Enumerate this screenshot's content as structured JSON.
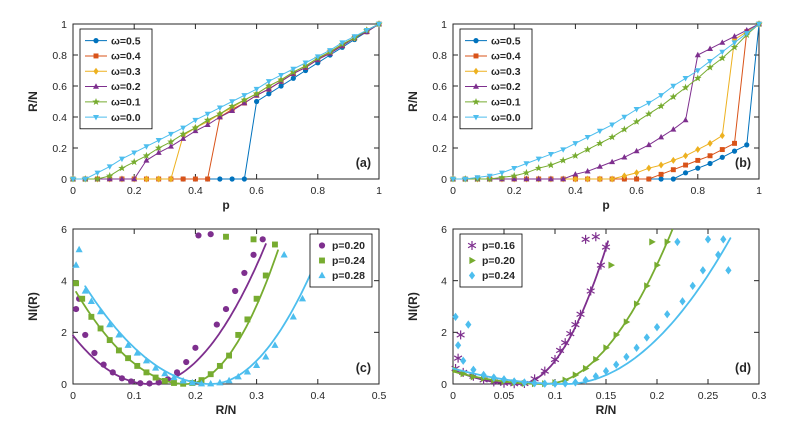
{
  "figure": {
    "background": "#ffffff",
    "axes_color": "#262626",
    "panel_labels": [
      "(a)",
      "(b)",
      "(c)",
      "(d)"
    ]
  },
  "palette": {
    "blue": "#0072BD",
    "orange": "#D95319",
    "yellow": "#EDB120",
    "purple": "#7E2F8E",
    "green": "#77AC30",
    "cyan": "#4DBEEE"
  },
  "chart_data": [
    {
      "id": "a",
      "type": "line",
      "panel_label": "(a)",
      "xlabel": "p",
      "ylabel": "R/N",
      "xlim": [
        0,
        1
      ],
      "ylim": [
        0,
        1
      ],
      "xticks": [
        0,
        0.2,
        0.4,
        0.6,
        0.8,
        1
      ],
      "yticks": [
        0,
        0.2,
        0.4,
        0.6,
        0.8,
        1
      ],
      "grid": false,
      "legend_pos": "top-left",
      "x": [
        0,
        0.04,
        0.08,
        0.12,
        0.16,
        0.2,
        0.24,
        0.28,
        0.32,
        0.36,
        0.4,
        0.44,
        0.48,
        0.52,
        0.56,
        0.6,
        0.64,
        0.68,
        0.72,
        0.76,
        0.8,
        0.84,
        0.88,
        0.92,
        0.96,
        1
      ],
      "series": [
        {
          "name": "ω=0.5",
          "color": "#0072BD",
          "marker": "circle",
          "y": [
            0,
            0,
            0,
            0,
            0,
            0,
            0,
            0,
            0,
            0,
            0,
            0,
            0,
            0,
            0,
            0.5,
            0.55,
            0.6,
            0.65,
            0.7,
            0.75,
            0.8,
            0.85,
            0.9,
            0.95,
            1
          ]
        },
        {
          "name": "ω=0.4",
          "color": "#D95319",
          "marker": "square",
          "y": [
            0,
            0,
            0,
            0,
            0,
            0,
            0,
            0,
            0,
            0,
            0,
            0,
            0.4,
            0.45,
            0.49,
            0.54,
            0.58,
            0.63,
            0.68,
            0.72,
            0.77,
            0.82,
            0.86,
            0.91,
            0.95,
            1
          ]
        },
        {
          "name": "ω=0.3",
          "color": "#EDB120",
          "marker": "diamond",
          "y": [
            0,
            0,
            0,
            0,
            0,
            0,
            0,
            0,
            0,
            0.28,
            0.33,
            0.37,
            0.42,
            0.46,
            0.51,
            0.55,
            0.6,
            0.64,
            0.69,
            0.73,
            0.78,
            0.82,
            0.87,
            0.91,
            0.96,
            1
          ]
        },
        {
          "name": "ω=0.2",
          "color": "#7E2F8E",
          "marker": "triangle-up",
          "y": [
            0,
            0,
            0,
            0,
            0,
            0,
            0.12,
            0.17,
            0.21,
            0.26,
            0.31,
            0.35,
            0.4,
            0.44,
            0.49,
            0.54,
            0.58,
            0.63,
            0.68,
            0.72,
            0.77,
            0.81,
            0.86,
            0.91,
            0.95,
            1
          ]
        },
        {
          "name": "ω=0.1",
          "color": "#77AC30",
          "marker": "star",
          "y": [
            0,
            0,
            0,
            0.02,
            0.07,
            0.11,
            0.15,
            0.2,
            0.24,
            0.29,
            0.33,
            0.38,
            0.42,
            0.47,
            0.51,
            0.55,
            0.6,
            0.64,
            0.69,
            0.73,
            0.78,
            0.82,
            0.87,
            0.91,
            0.96,
            1
          ]
        },
        {
          "name": "ω=0.0",
          "color": "#4DBEEE",
          "marker": "triangle-down",
          "y": [
            0,
            0,
            0.04,
            0.08,
            0.13,
            0.17,
            0.21,
            0.25,
            0.29,
            0.33,
            0.38,
            0.42,
            0.46,
            0.5,
            0.54,
            0.58,
            0.63,
            0.67,
            0.71,
            0.75,
            0.79,
            0.83,
            0.88,
            0.92,
            0.96,
            1
          ]
        }
      ]
    },
    {
      "id": "b",
      "type": "line",
      "panel_label": "(b)",
      "xlabel": "p",
      "ylabel": "R/N",
      "xlim": [
        0,
        1
      ],
      "ylim": [
        0,
        1
      ],
      "xticks": [
        0,
        0.2,
        0.4,
        0.6,
        0.8,
        1
      ],
      "yticks": [
        0,
        0.2,
        0.4,
        0.6,
        0.8,
        1
      ],
      "grid": false,
      "legend_pos": "top-left",
      "x": [
        0,
        0.04,
        0.08,
        0.12,
        0.16,
        0.2,
        0.24,
        0.28,
        0.32,
        0.36,
        0.4,
        0.44,
        0.48,
        0.52,
        0.56,
        0.6,
        0.64,
        0.68,
        0.72,
        0.76,
        0.8,
        0.84,
        0.88,
        0.92,
        0.96,
        1
      ],
      "series": [
        {
          "name": "ω=0.5",
          "color": "#0072BD",
          "marker": "circle",
          "y": [
            0,
            0,
            0,
            0,
            0,
            0,
            0,
            0,
            0,
            0,
            0,
            0,
            0,
            0,
            0,
            0,
            0,
            0,
            0,
            0.04,
            0.07,
            0.1,
            0.14,
            0.18,
            0.22,
            1
          ]
        },
        {
          "name": "ω=0.4",
          "color": "#D95319",
          "marker": "square",
          "y": [
            0,
            0,
            0,
            0,
            0,
            0,
            0,
            0,
            0,
            0,
            0,
            0,
            0,
            0,
            0,
            0,
            0,
            0.03,
            0.06,
            0.09,
            0.12,
            0.15,
            0.19,
            0.23,
            0.95,
            1
          ]
        },
        {
          "name": "ω=0.3",
          "color": "#EDB120",
          "marker": "diamond",
          "y": [
            0,
            0,
            0,
            0,
            0,
            0,
            0,
            0,
            0,
            0,
            0,
            0,
            0,
            0,
            0.02,
            0.04,
            0.07,
            0.09,
            0.12,
            0.15,
            0.19,
            0.23,
            0.28,
            0.9,
            0.95,
            1
          ]
        },
        {
          "name": "ω=0.2",
          "color": "#7E2F8E",
          "marker": "triangle-up",
          "y": [
            0,
            0,
            0,
            0,
            0,
            0,
            0,
            0,
            0,
            0,
            0.03,
            0.05,
            0.08,
            0.11,
            0.14,
            0.18,
            0.22,
            0.27,
            0.32,
            0.38,
            0.8,
            0.84,
            0.88,
            0.92,
            0.96,
            1
          ]
        },
        {
          "name": "ω=0.1",
          "color": "#77AC30",
          "marker": "star",
          "y": [
            0,
            0,
            0,
            0,
            0.01,
            0.02,
            0.04,
            0.07,
            0.09,
            0.12,
            0.15,
            0.19,
            0.23,
            0.27,
            0.32,
            0.37,
            0.42,
            0.47,
            0.53,
            0.59,
            0.65,
            0.72,
            0.78,
            0.85,
            0.93,
            1
          ]
        },
        {
          "name": "ω=0.0",
          "color": "#4DBEEE",
          "marker": "triangle-down",
          "y": [
            0,
            0,
            0.01,
            0.02,
            0.04,
            0.07,
            0.1,
            0.13,
            0.16,
            0.19,
            0.23,
            0.27,
            0.31,
            0.35,
            0.4,
            0.45,
            0.49,
            0.54,
            0.6,
            0.65,
            0.7,
            0.76,
            0.82,
            0.88,
            0.94,
            1
          ]
        }
      ]
    },
    {
      "id": "c",
      "type": "scatter",
      "panel_label": "(c)",
      "xlabel": "R/N",
      "ylabel": "NI(R)",
      "xlim": [
        0,
        0.5
      ],
      "ylim": [
        0,
        6
      ],
      "xticks": [
        0,
        0.1,
        0.2,
        0.3,
        0.4,
        0.5
      ],
      "yticks": [
        0,
        2,
        4,
        6
      ],
      "grid": false,
      "legend_pos": "top-right",
      "series": [
        {
          "name": "p=0.20",
          "color": "#7E2F8E",
          "marker": "circle",
          "points_x": [
            0.005,
            0.01,
            0.02,
            0.035,
            0.05,
            0.065,
            0.08,
            0.095,
            0.11,
            0.125,
            0.14,
            0.155,
            0.17,
            0.185,
            0.2,
            0.205,
            0.225,
            0.235,
            0.25,
            0.265,
            0.28,
            0.295,
            0.31
          ],
          "points_y": [
            2.9,
            3.3,
            1.9,
            1.2,
            0.75,
            0.45,
            0.22,
            0.1,
            0.03,
            0.02,
            0.06,
            0.18,
            0.45,
            0.85,
            1.4,
            5.75,
            5.8,
            2.3,
            2.9,
            3.6,
            4.3,
            5.0,
            5.6
          ],
          "fit": {
            "x0": 0.125,
            "kl": 120,
            "kr": 150,
            "xmin": 0.0,
            "xmax": 0.315
          }
        },
        {
          "name": "p=0.24",
          "color": "#77AC30",
          "marker": "square",
          "points_x": [
            0.005,
            0.015,
            0.03,
            0.045,
            0.06,
            0.075,
            0.09,
            0.105,
            0.12,
            0.135,
            0.15,
            0.165,
            0.18,
            0.195,
            0.21,
            0.225,
            0.24,
            0.25,
            0.255,
            0.27,
            0.285,
            0.295,
            0.3,
            0.315,
            0.33
          ],
          "points_y": [
            3.9,
            3.3,
            2.6,
            2.15,
            1.7,
            1.3,
            1.0,
            0.7,
            0.45,
            0.25,
            0.12,
            0.04,
            0.01,
            0.04,
            0.15,
            0.38,
            0.7,
            5.7,
            1.1,
            1.9,
            2.5,
            5.6,
            3.3,
            4.2,
            5.4
          ],
          "fit": {
            "x0": 0.185,
            "kl": 110,
            "kr": 230,
            "xmin": 0.005,
            "xmax": 0.335
          }
        },
        {
          "name": "p=0.28",
          "color": "#4DBEEE",
          "marker": "triangle-up",
          "points_x": [
            0.005,
            0.01,
            0.02,
            0.03,
            0.045,
            0.06,
            0.075,
            0.09,
            0.105,
            0.12,
            0.135,
            0.15,
            0.165,
            0.18,
            0.195,
            0.21,
            0.225,
            0.24,
            0.255,
            0.27,
            0.285,
            0.3,
            0.315,
            0.33,
            0.345,
            0.36,
            0.375,
            0.39,
            0.4
          ],
          "points_y": [
            4.6,
            5.2,
            3.6,
            3.2,
            2.8,
            2.3,
            1.9,
            1.5,
            1.2,
            0.9,
            0.62,
            0.4,
            0.25,
            0.12,
            0.05,
            0.01,
            0.01,
            0.05,
            0.13,
            0.28,
            0.47,
            0.72,
            1.05,
            1.5,
            5.0,
            2.6,
            3.3,
            4.2,
            4.9
          ],
          "fit": {
            "x0": 0.225,
            "kl": 90,
            "kr": 160,
            "xmin": 0.02,
            "xmax": 0.405
          }
        }
      ]
    },
    {
      "id": "d",
      "type": "scatter",
      "panel_label": "(d)",
      "xlabel": "R/N",
      "ylabel": "NI(R)",
      "xlim": [
        0,
        0.3
      ],
      "ylim": [
        0,
        6
      ],
      "xticks": [
        0,
        0.05,
        0.1,
        0.15,
        0.2,
        0.25,
        0.3
      ],
      "yticks": [
        0,
        2,
        4,
        6
      ],
      "grid": false,
      "legend_pos": "top-left",
      "series": [
        {
          "name": "p=0.16",
          "color": "#7E2F8E",
          "marker": "asterisk",
          "points_x": [
            0.0025,
            0.005,
            0.0075,
            0.01,
            0.02,
            0.03,
            0.04,
            0.05,
            0.06,
            0.07,
            0.08,
            0.09,
            0.1,
            0.105,
            0.11,
            0.115,
            0.12,
            0.125,
            0.13,
            0.135,
            0.14,
            0.145,
            0.15
          ],
          "points_y": [
            0.6,
            1.0,
            1.9,
            0.45,
            0.3,
            0.16,
            0.08,
            0.03,
            0.01,
            0.02,
            0.2,
            0.5,
            0.95,
            1.3,
            1.6,
            1.95,
            2.3,
            2.7,
            5.6,
            3.6,
            5.7,
            4.6,
            5.3
          ],
          "fit": {
            "x0": 0.065,
            "kl": 130,
            "kr": 730,
            "xmin": 0.0,
            "xmax": 0.152
          }
        },
        {
          "name": "p=0.20",
          "color": "#77AC30",
          "marker": "triangle-right",
          "points_x": [
            0.0025,
            0.01,
            0.02,
            0.03,
            0.04,
            0.05,
            0.06,
            0.07,
            0.08,
            0.09,
            0.1,
            0.11,
            0.12,
            0.13,
            0.14,
            0.15,
            0.155,
            0.16,
            0.17,
            0.18,
            0.19,
            0.195,
            0.2,
            0.21
          ],
          "points_y": [
            0.55,
            0.4,
            0.28,
            0.22,
            0.15,
            0.1,
            0.05,
            0.02,
            0.01,
            0.01,
            0.05,
            0.15,
            0.35,
            0.6,
            0.95,
            1.4,
            4.6,
            1.9,
            2.4,
            3.1,
            3.8,
            5.5,
            4.6,
            5.5
          ],
          "fit": {
            "x0": 0.09,
            "kl": 60,
            "kr": 382,
            "xmin": 0.0,
            "xmax": 0.215
          }
        },
        {
          "name": "p=0.24",
          "color": "#4DBEEE",
          "marker": "diamond",
          "points_x": [
            0.0025,
            0.005,
            0.01,
            0.015,
            0.02,
            0.03,
            0.04,
            0.05,
            0.06,
            0.07,
            0.08,
            0.09,
            0.1,
            0.11,
            0.12,
            0.13,
            0.14,
            0.15,
            0.16,
            0.17,
            0.18,
            0.19,
            0.2,
            0.21,
            0.22,
            0.225,
            0.235,
            0.245,
            0.25,
            0.26,
            0.265,
            0.27
          ],
          "points_y": [
            2.6,
            1.5,
            0.9,
            2.3,
            0.55,
            0.35,
            0.25,
            0.18,
            0.1,
            0.06,
            0.03,
            0.01,
            0.01,
            0.02,
            0.06,
            0.15,
            0.3,
            0.5,
            0.75,
            1.05,
            1.4,
            1.8,
            2.2,
            2.7,
            5.5,
            3.2,
            3.8,
            4.4,
            5.6,
            5.0,
            5.6,
            4.4
          ],
          "fit": {
            "x0": 0.11,
            "kl": 50,
            "kr": 215,
            "xmin": 0.0,
            "xmax": 0.272
          }
        }
      ]
    }
  ]
}
